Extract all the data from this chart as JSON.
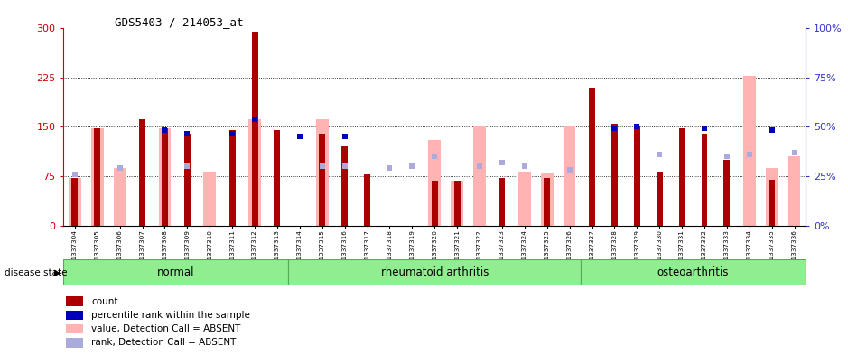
{
  "title": "GDS5403 / 214053_at",
  "samples": [
    "GSM1337304",
    "GSM1337305",
    "GSM1337306",
    "GSM1337307",
    "GSM1337308",
    "GSM1337309",
    "GSM1337310",
    "GSM1337311",
    "GSM1337312",
    "GSM1337313",
    "GSM1337314",
    "GSM1337315",
    "GSM1337316",
    "GSM1337317",
    "GSM1337318",
    "GSM1337319",
    "GSM1337320",
    "GSM1337321",
    "GSM1337322",
    "GSM1337323",
    "GSM1337324",
    "GSM1337325",
    "GSM1337326",
    "GSM1337327",
    "GSM1337328",
    "GSM1337329",
    "GSM1337330",
    "GSM1337331",
    "GSM1337332",
    "GSM1337333",
    "GSM1337334",
    "GSM1337335",
    "GSM1337336"
  ],
  "count_values": [
    72,
    148,
    0,
    162,
    148,
    140,
    0,
    145,
    295,
    145,
    0,
    140,
    120,
    78,
    0,
    0,
    68,
    68,
    0,
    72,
    0,
    72,
    0,
    210,
    155,
    150,
    82,
    148,
    140,
    100,
    0,
    70,
    0
  ],
  "absent_values": [
    72,
    148,
    88,
    0,
    148,
    0,
    82,
    0,
    162,
    0,
    0,
    162,
    0,
    0,
    0,
    0,
    130,
    68,
    152,
    0,
    82,
    80,
    152,
    0,
    0,
    0,
    0,
    0,
    0,
    0,
    228,
    88,
    105
  ],
  "percentile_values": [
    0,
    0,
    0,
    0,
    145,
    140,
    0,
    140,
    162,
    0,
    135,
    0,
    135,
    0,
    0,
    0,
    0,
    0,
    0,
    0,
    0,
    0,
    0,
    0,
    148,
    150,
    0,
    0,
    148,
    0,
    0,
    145,
    0
  ],
  "absent_rank_pct": [
    26,
    0,
    29,
    0,
    0,
    30,
    0,
    0,
    0,
    0,
    0,
    30,
    30,
    0,
    29,
    30,
    35,
    0,
    30,
    32,
    30,
    0,
    28,
    0,
    0,
    0,
    36,
    0,
    0,
    35,
    36,
    0,
    37
  ],
  "group_boundaries": [
    0,
    10,
    23,
    33
  ],
  "group_labels": [
    "normal",
    "rheumatoid arthritis",
    "osteoarthritis"
  ],
  "ylim_left": [
    0,
    300
  ],
  "ylim_right": [
    0,
    100
  ],
  "yticks_left": [
    0,
    75,
    150,
    225,
    300
  ],
  "yticks_right": [
    0,
    25,
    50,
    75,
    100
  ],
  "left_axis_color": "#cc0000",
  "right_axis_color": "#3333cc",
  "bar_color_count": "#aa0000",
  "bar_color_absent": "#ffb3b3",
  "dot_color_pct": "#0000bb",
  "dot_color_rank": "#aaaadd",
  "green_fill": "#90ee90",
  "green_border": "#55aa55",
  "disease_state_label": "disease state"
}
